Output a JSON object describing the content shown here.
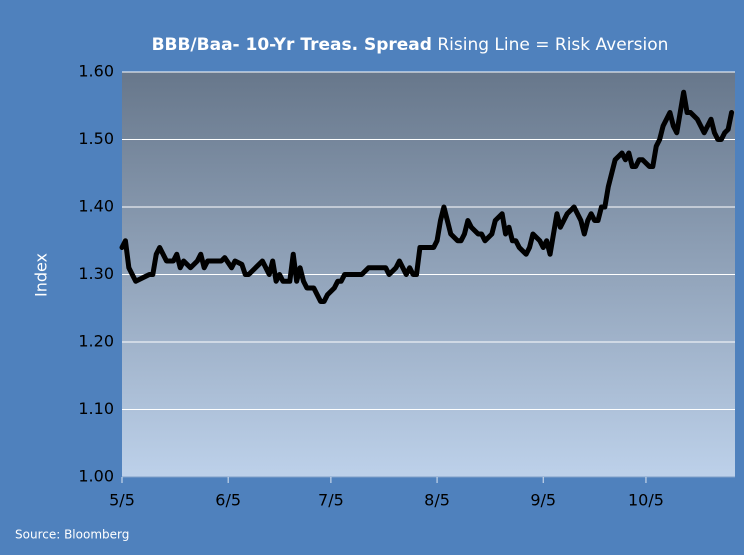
{
  "chart_data": {
    "type": "line",
    "title": "BBB/Baa- 10-Yr Treas. Spread",
    "subtitle": "Rising Line = Risk Aversion",
    "ylabel": "Index",
    "source": "Source: Bloomberg",
    "x": [
      0,
      1,
      2,
      4,
      6,
      8,
      9,
      10,
      11,
      13,
      15,
      16,
      17,
      18,
      20,
      22,
      23,
      24,
      25,
      27,
      29,
      30,
      32,
      33,
      35,
      36,
      37,
      39,
      41,
      42,
      43,
      44,
      45,
      46,
      47,
      48,
      49,
      50,
      51,
      52,
      53,
      54,
      56,
      57,
      58,
      59,
      60,
      62,
      63,
      64,
      65,
      67,
      69,
      70,
      72,
      74,
      75,
      77,
      78,
      80,
      81,
      82,
      83,
      84,
      85,
      86,
      87,
      89,
      91,
      92,
      93,
      94,
      95,
      96,
      98,
      99,
      100,
      101,
      102,
      104,
      105,
      106,
      108,
      109,
      111,
      112,
      113,
      114,
      115,
      116,
      118,
      119,
      120,
      122,
      123,
      124,
      125,
      126,
      127,
      128,
      129,
      130,
      132,
      133,
      134,
      135,
      136,
      137,
      138,
      139,
      140,
      141,
      142,
      143,
      144,
      146,
      147,
      148,
      149,
      150,
      151,
      152,
      154,
      155,
      156,
      157,
      158,
      160,
      161,
      162,
      163,
      164,
      165,
      166,
      167,
      168,
      169,
      170,
      171,
      172,
      173,
      174,
      175,
      176,
      177,
      178
    ],
    "series": [
      {
        "name": "Spread",
        "color": "#000000",
        "values": [
          1.34,
          1.35,
          1.31,
          1.29,
          1.295,
          1.3,
          1.3,
          1.33,
          1.34,
          1.32,
          1.32,
          1.33,
          1.31,
          1.32,
          1.31,
          1.32,
          1.33,
          1.31,
          1.32,
          1.32,
          1.32,
          1.325,
          1.31,
          1.32,
          1.315,
          1.3,
          1.3,
          1.31,
          1.32,
          1.31,
          1.3,
          1.32,
          1.29,
          1.3,
          1.29,
          1.29,
          1.29,
          1.33,
          1.29,
          1.31,
          1.29,
          1.28,
          1.28,
          1.27,
          1.26,
          1.26,
          1.27,
          1.28,
          1.29,
          1.29,
          1.3,
          1.3,
          1.3,
          1.3,
          1.31,
          1.31,
          1.31,
          1.31,
          1.3,
          1.31,
          1.32,
          1.31,
          1.3,
          1.31,
          1.3,
          1.3,
          1.34,
          1.34,
          1.34,
          1.35,
          1.38,
          1.4,
          1.38,
          1.36,
          1.35,
          1.35,
          1.36,
          1.38,
          1.37,
          1.36,
          1.36,
          1.35,
          1.36,
          1.38,
          1.39,
          1.36,
          1.37,
          1.35,
          1.35,
          1.34,
          1.33,
          1.34,
          1.36,
          1.35,
          1.34,
          1.35,
          1.33,
          1.36,
          1.39,
          1.37,
          1.38,
          1.39,
          1.4,
          1.39,
          1.38,
          1.36,
          1.38,
          1.39,
          1.38,
          1.38,
          1.4,
          1.4,
          1.43,
          1.45,
          1.47,
          1.48,
          1.47,
          1.48,
          1.46,
          1.46,
          1.47,
          1.47,
          1.46,
          1.46,
          1.49,
          1.5,
          1.52,
          1.54,
          1.52,
          1.51,
          1.54,
          1.57,
          1.54,
          1.54,
          1.535,
          1.53,
          1.52,
          1.51,
          1.52,
          1.53,
          1.51,
          1.5,
          1.5,
          1.51,
          1.515,
          1.54
        ]
      }
    ],
    "xlim": [
      0,
      179
    ],
    "xticks": [
      {
        "value": 0,
        "label": "5/5"
      },
      {
        "value": 31,
        "label": "6/5"
      },
      {
        "value": 61,
        "label": "7/5"
      },
      {
        "value": 92,
        "label": "8/5"
      },
      {
        "value": 123,
        "label": "9/5"
      },
      {
        "value": 153,
        "label": "10/5"
      }
    ],
    "ylim": [
      1,
      1.6
    ],
    "yticks": [
      {
        "value": 1,
        "label": "1.00"
      },
      {
        "value": 1.1,
        "label": "1.10"
      },
      {
        "value": 1.2,
        "label": "1.20"
      },
      {
        "value": 1.3,
        "label": "1.30"
      },
      {
        "value": 1.4,
        "label": "1.40"
      },
      {
        "value": 1.5,
        "label": "1.50"
      },
      {
        "value": 1.6,
        "label": "1.60"
      }
    ],
    "grid": true
  }
}
